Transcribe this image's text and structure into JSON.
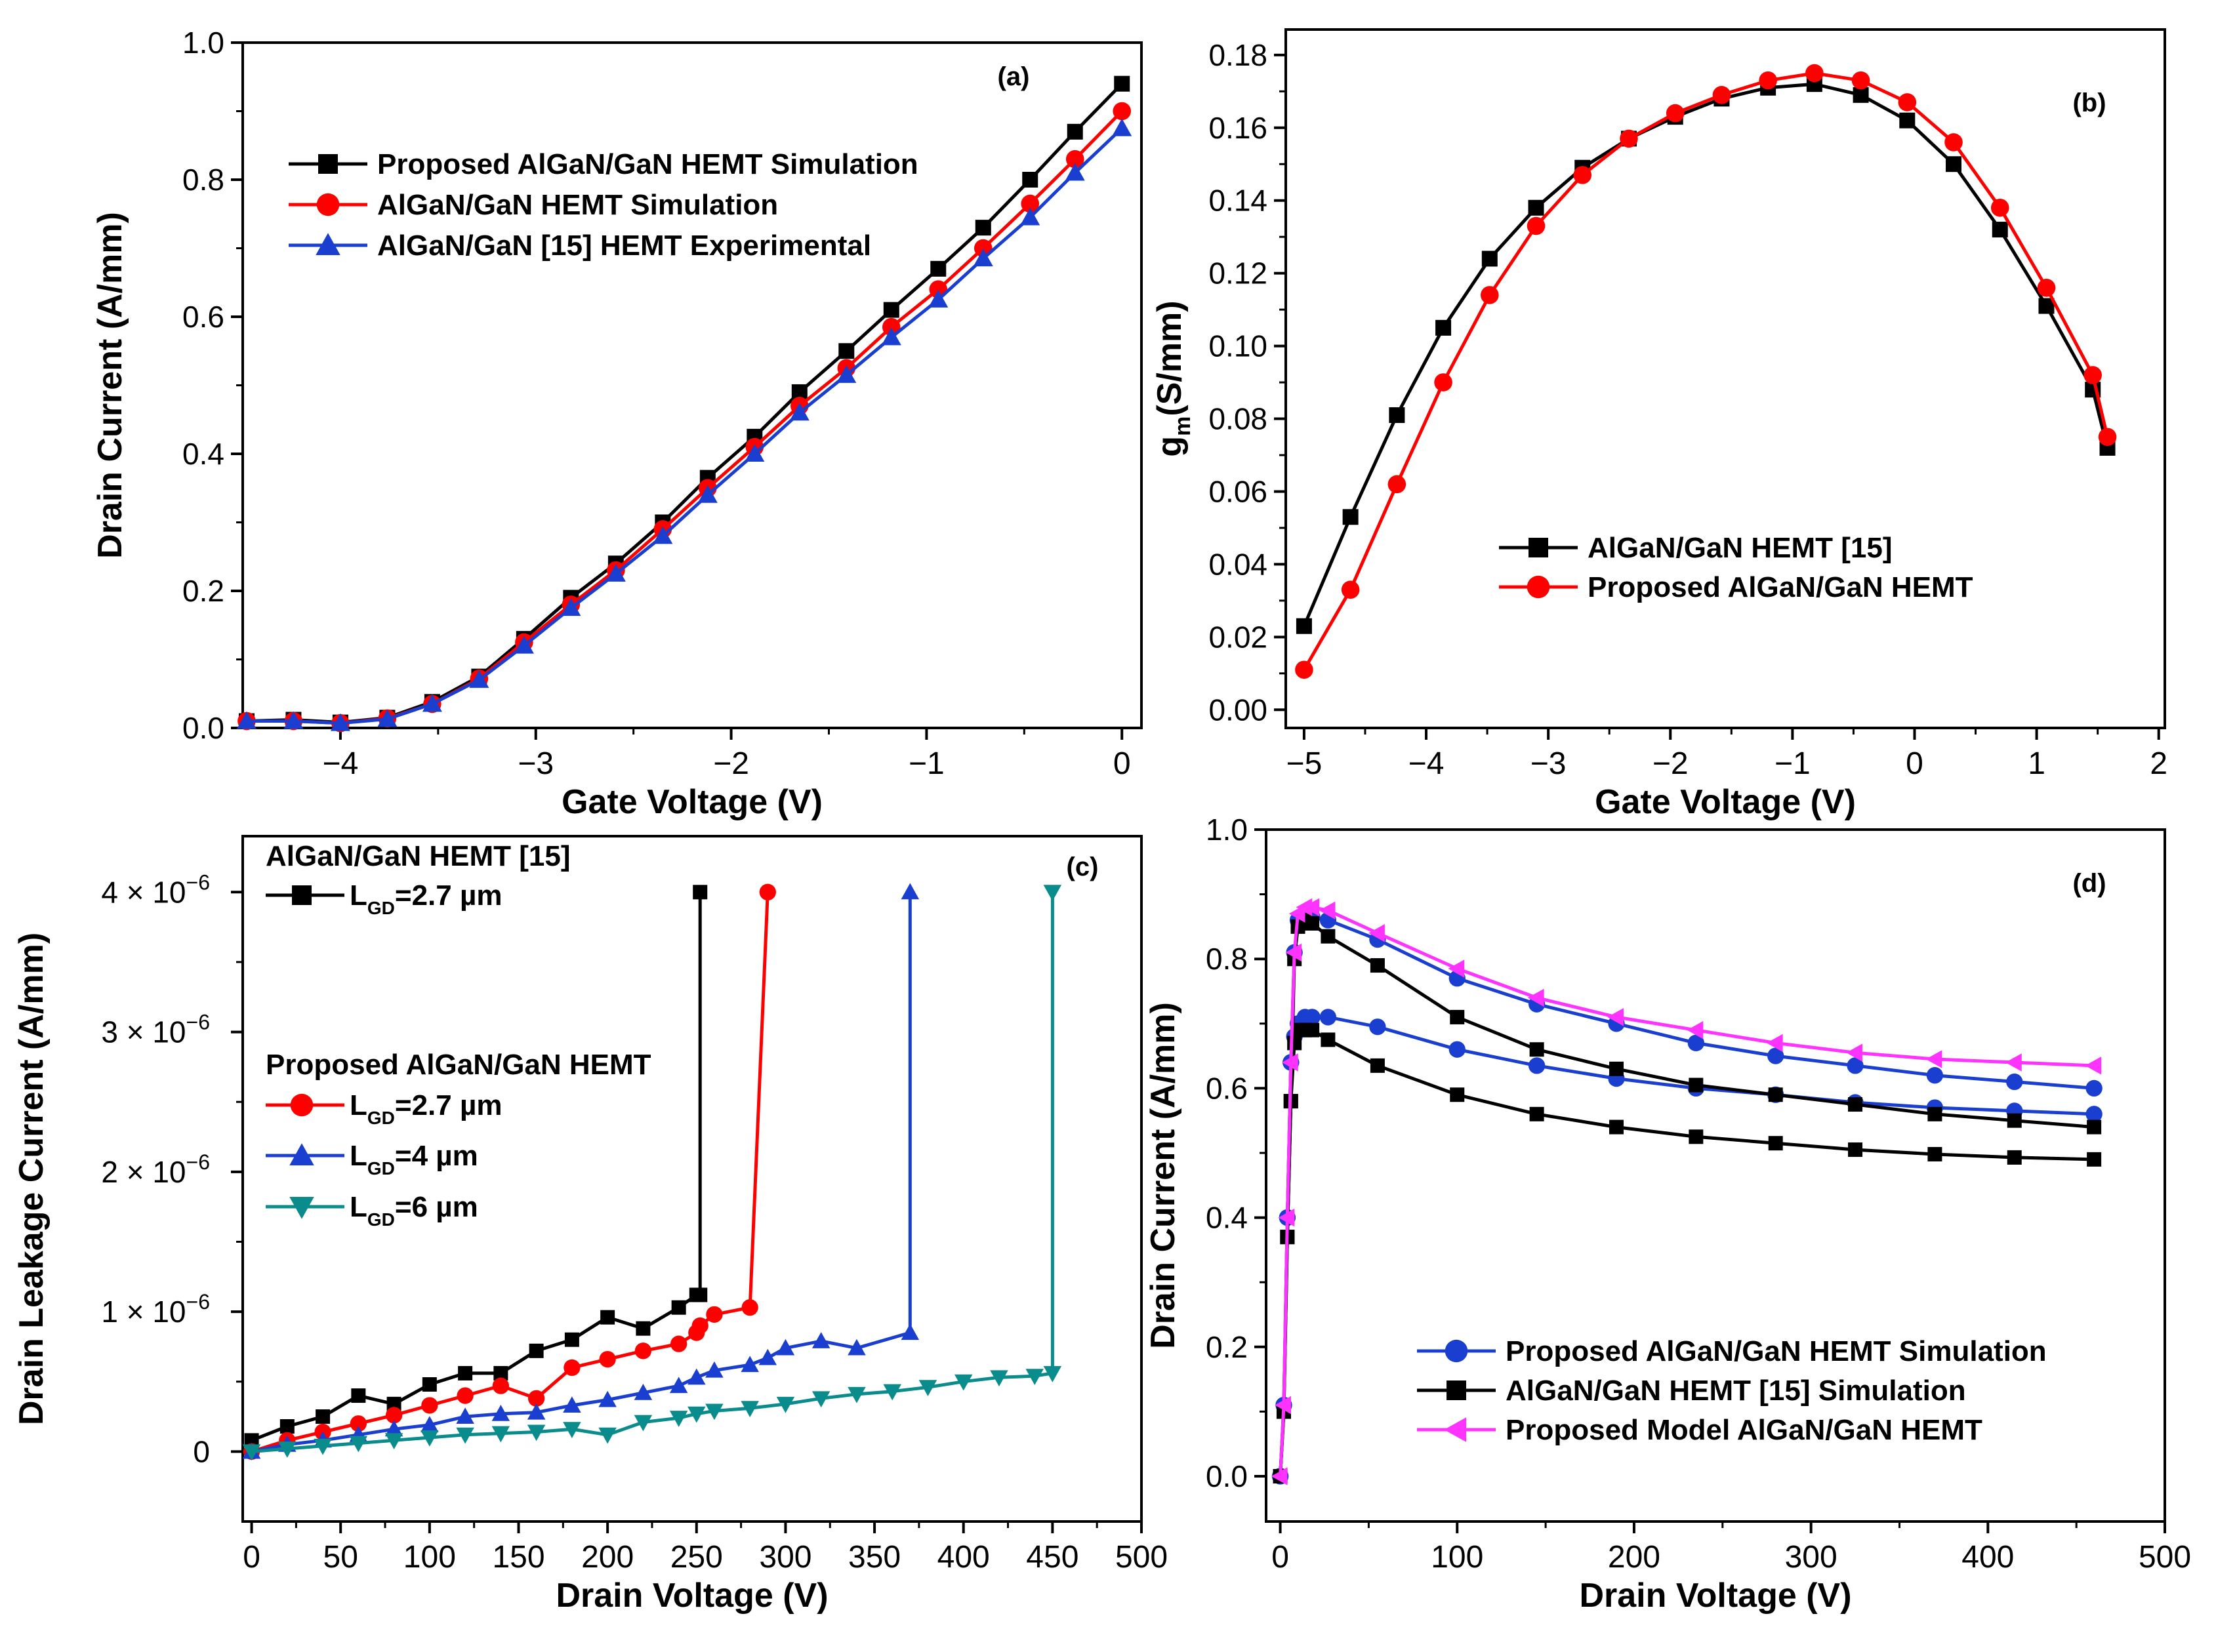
{
  "chart_data": [
    {
      "panel": "(a)",
      "type": "line",
      "xlabel": "Gate Voltage (V)",
      "ylabel": "Drain Current (A/mm)",
      "xlim": [
        -4.5,
        0.1
      ],
      "ylim": [
        0,
        1.0
      ],
      "xticks": [
        -4,
        -3,
        -2,
        -1,
        0
      ],
      "xtick_labels": [
        "−4",
        "−3",
        "−2",
        "−1",
        "0"
      ],
      "yticks": [
        0,
        0.2,
        0.4,
        0.6,
        0.8,
        1.0
      ],
      "ytick_labels": [
        "0.0",
        "0.2",
        "0.4",
        "0.6",
        "0.8",
        "1.0"
      ],
      "legend_position": "upper-left",
      "series": [
        {
          "name": "Proposed AlGaN/GaN HEMT Simulation",
          "color": "#000000",
          "marker": "square",
          "x": [
            -4.48,
            -4.24,
            -4.0,
            -3.76,
            -3.53,
            -3.29,
            -3.06,
            -2.82,
            -2.59,
            -2.35,
            -2.12,
            -1.88,
            -1.65,
            -1.41,
            -1.18,
            -0.94,
            -0.71,
            -0.47,
            -0.24,
            0.0
          ],
          "y": [
            0.01,
            0.012,
            0.008,
            0.015,
            0.038,
            0.075,
            0.13,
            0.19,
            0.24,
            0.3,
            0.365,
            0.425,
            0.49,
            0.55,
            0.61,
            0.67,
            0.73,
            0.8,
            0.87,
            0.94
          ]
        },
        {
          "name": "AlGaN/GaN HEMT Simulation",
          "color": "#ff0000",
          "marker": "circle",
          "x": [
            -4.48,
            -4.24,
            -4.0,
            -3.76,
            -3.53,
            -3.29,
            -3.06,
            -2.82,
            -2.59,
            -2.35,
            -2.12,
            -1.88,
            -1.65,
            -1.41,
            -1.18,
            -0.94,
            -0.71,
            -0.47,
            -0.24,
            0.0
          ],
          "y": [
            0.01,
            0.01,
            0.007,
            0.014,
            0.035,
            0.072,
            0.125,
            0.18,
            0.23,
            0.29,
            0.35,
            0.41,
            0.47,
            0.525,
            0.585,
            0.64,
            0.7,
            0.765,
            0.83,
            0.9
          ]
        },
        {
          "name": "AlGaN/GaN [15] HEMT Experimental",
          "color": "#1a3fd0",
          "marker": "triangle",
          "x": [
            -4.48,
            -4.24,
            -4.0,
            -3.76,
            -3.53,
            -3.29,
            -3.06,
            -2.82,
            -2.59,
            -2.35,
            -2.12,
            -1.88,
            -1.65,
            -1.41,
            -1.18,
            -0.94,
            -0.71,
            -0.47,
            -0.24,
            0.0
          ],
          "y": [
            0.01,
            0.01,
            0.007,
            0.013,
            0.035,
            0.07,
            0.12,
            0.175,
            0.225,
            0.28,
            0.34,
            0.4,
            0.46,
            0.515,
            0.57,
            0.625,
            0.685,
            0.745,
            0.81,
            0.875
          ]
        }
      ]
    },
    {
      "panel": "(b)",
      "type": "line",
      "xlabel": "Gate Voltage (V)",
      "ylabel_main": "g",
      "ylabel_sub": "m",
      "ylabel_rest": "(S/mm)",
      "xlim": [
        -5.15,
        2.05
      ],
      "ylim": [
        -0.005,
        0.187
      ],
      "xticks": [
        -5,
        -4,
        -3,
        -2,
        -1,
        0,
        1,
        2
      ],
      "xtick_labels": [
        "−5",
        "−4",
        "−3",
        "−2",
        "−1",
        "0",
        "1",
        "2"
      ],
      "yticks": [
        0.0,
        0.02,
        0.04,
        0.06,
        0.08,
        0.1,
        0.12,
        0.14,
        0.16,
        0.18
      ],
      "ytick_labels": [
        "0.00",
        "0.02",
        "0.04",
        "0.06",
        "0.08",
        "0.10",
        "0.12",
        "0.14",
        "0.16",
        "0.18"
      ],
      "legend_position": "lower-center",
      "series": [
        {
          "name": "AlGaN/GaN HEMT [15]",
          "color": "#000000",
          "marker": "square",
          "x": [
            -5.0,
            -4.62,
            -4.24,
            -3.86,
            -3.48,
            -3.1,
            -2.72,
            -2.34,
            -1.96,
            -1.58,
            -1.2,
            -0.82,
            -0.44,
            -0.06,
            0.32,
            0.7,
            1.08,
            1.46,
            1.58
          ],
          "y": [
            0.023,
            0.053,
            0.081,
            0.105,
            0.124,
            0.138,
            0.149,
            0.157,
            0.163,
            0.168,
            0.171,
            0.172,
            0.169,
            0.162,
            0.15,
            0.132,
            0.111,
            0.088,
            0.072
          ]
        },
        {
          "name": "Proposed AlGaN/GaN HEMT",
          "color": "#ff0000",
          "marker": "circle",
          "x": [
            -5.0,
            -4.62,
            -4.24,
            -3.86,
            -3.48,
            -3.1,
            -2.72,
            -2.34,
            -1.96,
            -1.58,
            -1.2,
            -0.82,
            -0.44,
            -0.06,
            0.32,
            0.7,
            1.08,
            1.46,
            1.58
          ],
          "y": [
            0.011,
            0.033,
            0.062,
            0.09,
            0.114,
            0.133,
            0.147,
            0.157,
            0.164,
            0.169,
            0.173,
            0.175,
            0.173,
            0.167,
            0.156,
            0.138,
            0.116,
            0.092,
            0.075
          ]
        }
      ]
    },
    {
      "panel": "(c)",
      "type": "line",
      "xlabel": "Drain Voltage (V)",
      "ylabel": "Drain Leakage Current (A/mm)",
      "xlim": [
        -5,
        500
      ],
      "ylim": [
        -5e-07,
        4.4e-06
      ],
      "xticks": [
        0,
        50,
        100,
        150,
        200,
        250,
        300,
        350,
        400,
        450,
        500
      ],
      "xtick_labels": [
        "0",
        "50",
        "100",
        "150",
        "200",
        "250",
        "300",
        "350",
        "400",
        "450",
        "500"
      ],
      "yticks": [
        0,
        1e-06,
        2e-06,
        3e-06,
        4e-06
      ],
      "ytick_labels": [
        {
          "mant": "0",
          "exp": ""
        },
        {
          "mant": "1 × 10",
          "exp": "−6"
        },
        {
          "mant": "2 × 10",
          "exp": "−6"
        },
        {
          "mant": "3 × 10",
          "exp": "−6"
        },
        {
          "mant": "4 × 10",
          "exp": "−6"
        }
      ],
      "legend_group1_title": "AlGaN/GaN HEMT [15]",
      "legend_group2_title": "Proposed AlGaN/GaN HEMT",
      "series": [
        {
          "name": "L",
          "sub": "GD",
          "rest": "=2.7 µm",
          "group": 1,
          "color": "#000000",
          "marker": "square",
          "x": [
            0,
            20,
            40,
            60,
            80,
            100,
            120,
            140,
            160,
            180,
            200,
            220,
            240,
            250,
            252,
            252
          ],
          "y": [
            8e-08,
            1.8e-07,
            2.5e-07,
            4e-07,
            3.4e-07,
            4.8e-07,
            5.6e-07,
            5.6e-07,
            7.2e-07,
            8e-07,
            9.6e-07,
            8.8e-07,
            1.03e-06,
            1.12e-06,
            1.12e-06,
            4e-06
          ]
        },
        {
          "name": "L",
          "sub": "GD",
          "rest": "=2.7 µm",
          "group": 2,
          "color": "#ff0000",
          "marker": "circle",
          "x": [
            0,
            20,
            40,
            60,
            80,
            100,
            120,
            140,
            160,
            180,
            200,
            220,
            240,
            250,
            252,
            260,
            280,
            290
          ],
          "y": [
            0.0,
            8e-08,
            1.4e-07,
            2e-07,
            2.6e-07,
            3.3e-07,
            4e-07,
            4.7e-07,
            3.8e-07,
            6e-07,
            6.6e-07,
            7.2e-07,
            7.7e-07,
            8.5e-07,
            9e-07,
            9.8e-07,
            1.03e-06,
            4e-06
          ]
        },
        {
          "name": "L",
          "sub": "GD",
          "rest": "=4 µm",
          "group": 2,
          "color": "#1a3fd0",
          "marker": "triangle",
          "x": [
            0,
            20,
            40,
            60,
            80,
            100,
            120,
            140,
            160,
            180,
            200,
            220,
            240,
            250,
            260,
            280,
            290,
            300,
            320,
            340,
            370,
            370
          ],
          "y": [
            0.0,
            5e-08,
            8e-08,
            1.2e-07,
            1.6e-07,
            1.9e-07,
            2.5e-07,
            2.7e-07,
            2.8e-07,
            3.3e-07,
            3.7e-07,
            4.2e-07,
            4.7e-07,
            5.3e-07,
            5.8e-07,
            6.2e-07,
            6.7e-07,
            7.4e-07,
            7.9e-07,
            7.4e-07,
            8.5e-07,
            4e-06
          ]
        },
        {
          "name": "L",
          "sub": "GD",
          "rest": "=6 µm",
          "group": 2,
          "color": "#0a8c8c",
          "marker": "triangle-down",
          "x": [
            0,
            20,
            40,
            60,
            80,
            100,
            120,
            140,
            160,
            180,
            200,
            220,
            240,
            250,
            260,
            280,
            300,
            320,
            340,
            360,
            380,
            400,
            420,
            440,
            450,
            450
          ],
          "y": [
            0.0,
            2e-08,
            4e-08,
            6e-08,
            8e-08,
            1e-07,
            1.2e-07,
            1.3e-07,
            1.4e-07,
            1.6e-07,
            1.2e-07,
            2.1e-07,
            2.4e-07,
            2.7e-07,
            2.9e-07,
            3.1e-07,
            3.4e-07,
            3.8e-07,
            4.1e-07,
            4.3e-07,
            4.6e-07,
            5e-07,
            5.3e-07,
            5.4e-07,
            5.6e-07,
            4e-06
          ]
        }
      ]
    },
    {
      "panel": "(d)",
      "type": "line",
      "xlabel": "Drain Voltage (V)",
      "ylabel": "Drain Current (A/mm)",
      "xlim": [
        -8,
        500
      ],
      "ylim": [
        -0.07,
        1.0
      ],
      "xticks": [
        0,
        100,
        200,
        300,
        400,
        500
      ],
      "xtick_labels": [
        "0",
        "100",
        "200",
        "300",
        "400",
        "500"
      ],
      "yticks": [
        0.0,
        0.2,
        0.4,
        0.6,
        0.8,
        1.0
      ],
      "ytick_labels": [
        "0.0",
        "0.2",
        "0.4",
        "0.6",
        "0.8",
        "1.0"
      ],
      "legend_position": "lower-center",
      "series": [
        {
          "name": "Proposed AlGaN/GaN HEMT Simulation",
          "color": "#1a3fd0",
          "marker": "circle",
          "x": [
            0,
            2,
            4,
            6,
            8,
            10,
            14,
            18,
            27,
            55,
            100,
            145,
            190,
            235,
            280,
            325,
            370,
            415,
            460
          ],
          "y": [
            0,
            0.11,
            0.4,
            0.64,
            0.81,
            0.86,
            0.87,
            0.865,
            0.86,
            0.83,
            0.77,
            0.73,
            0.7,
            0.67,
            0.65,
            0.635,
            0.62,
            0.61,
            0.6
          ]
        },
        {
          "name": "Proposed AlGaN/GaN HEMT Simulation",
          "color": "#1a3fd0",
          "marker": "circle",
          "x": [
            0,
            2,
            4,
            6,
            8,
            10,
            14,
            18,
            27,
            55,
            100,
            145,
            190,
            235,
            280,
            325,
            370,
            415,
            460
          ],
          "y": [
            0,
            0.11,
            0.4,
            0.64,
            0.68,
            0.7,
            0.71,
            0.71,
            0.71,
            0.695,
            0.66,
            0.635,
            0.615,
            0.6,
            0.59,
            0.578,
            0.57,
            0.565,
            0.56
          ]
        },
        {
          "name": "AlGaN/GaN HEMT [15] Simulation",
          "color": "#000000",
          "marker": "square",
          "x": [
            0,
            2,
            4,
            6,
            8,
            10,
            14,
            18,
            27,
            55,
            100,
            145,
            190,
            235,
            280,
            325,
            370,
            415,
            460
          ],
          "y": [
            0,
            0.1,
            0.37,
            0.58,
            0.8,
            0.85,
            0.86,
            0.855,
            0.835,
            0.79,
            0.71,
            0.66,
            0.63,
            0.605,
            0.59,
            0.575,
            0.56,
            0.55,
            0.54
          ]
        },
        {
          "name": "AlGaN/GaN HEMT [15] Simulation",
          "color": "#000000",
          "marker": "square",
          "x": [
            0,
            2,
            4,
            6,
            8,
            10,
            14,
            18,
            27,
            55,
            100,
            145,
            190,
            235,
            280,
            325,
            370,
            415,
            460
          ],
          "y": [
            0,
            0.1,
            0.37,
            0.58,
            0.67,
            0.69,
            0.69,
            0.69,
            0.675,
            0.635,
            0.59,
            0.56,
            0.54,
            0.525,
            0.515,
            0.505,
            0.498,
            0.493,
            0.49
          ]
        },
        {
          "name": "Proposed  Model AlGaN/GaN HEMT",
          "color": "#ff33ff",
          "marker": "triangle-left",
          "x": [
            0,
            2,
            4,
            6,
            8,
            10,
            14,
            18,
            27,
            55,
            100,
            145,
            190,
            235,
            280,
            325,
            370,
            415,
            460
          ],
          "y": [
            0,
            0.11,
            0.4,
            0.64,
            0.81,
            0.87,
            0.88,
            0.88,
            0.875,
            0.84,
            0.785,
            0.74,
            0.71,
            0.69,
            0.67,
            0.655,
            0.645,
            0.64,
            0.635
          ]
        }
      ],
      "legend_entries": [
        {
          "name": "Proposed AlGaN/GaN HEMT Simulation",
          "color": "#1a3fd0",
          "marker": "circle"
        },
        {
          "name": "AlGaN/GaN HEMT [15] Simulation",
          "color": "#000000",
          "marker": "square"
        },
        {
          "name": "Proposed  Model AlGaN/GaN HEMT",
          "color": "#ff33ff",
          "marker": "triangle-left"
        }
      ]
    }
  ]
}
